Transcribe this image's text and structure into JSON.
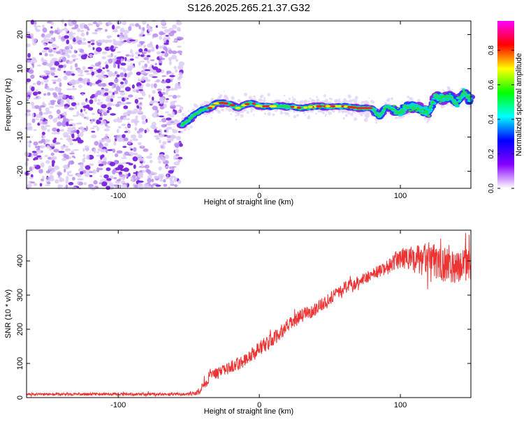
{
  "page_title": "S126.2025.265.21.37.G32",
  "chart_data": [
    {
      "type": "heatmap",
      "title": "S126.2025.265.21.37.G32",
      "xlabel": "Height of straight line (km)",
      "ylabel": "Frequency (Hz)",
      "xlim": [
        -165,
        150
      ],
      "ylim": [
        -25,
        24
      ],
      "xticks": [
        -100,
        0,
        100
      ],
      "yticks": [
        -20,
        -10,
        0,
        10,
        20
      ],
      "grid": false,
      "noise_region_x": [
        -165,
        -55
      ],
      "signal_track": {
        "x": [
          -55,
          -50,
          -45,
          -40,
          -35,
          -30,
          -25,
          -20,
          -15,
          -10,
          -5,
          0,
          10,
          20,
          30,
          40,
          50,
          60,
          70,
          80,
          85,
          90,
          95,
          100,
          105,
          110,
          115,
          120,
          125,
          130,
          135,
          140,
          145,
          150
        ],
        "freq": [
          -6.5,
          -5,
          -3,
          -2,
          -1.5,
          0,
          0,
          -0.5,
          -1.5,
          -0.5,
          0,
          -1,
          -1,
          -1,
          -1.5,
          -1,
          -1,
          -1,
          -1.5,
          -1.5,
          -4,
          -1,
          -2,
          -3,
          -1,
          -1,
          -2,
          -3,
          2,
          1,
          2,
          0,
          3,
          1
        ]
      },
      "colorbar": {
        "label": "Normalized spectral amplitude",
        "ticks": [
          "0.0",
          "0.2",
          "0.4",
          "0.6",
          "0.8"
        ],
        "tick_values": [
          0.0,
          0.2,
          0.4,
          0.6,
          0.8
        ],
        "range": [
          0,
          0.97
        ],
        "colors": [
          "#ff00ff",
          "#ff0000",
          "#ffff00",
          "#00ff00",
          "#00ffff",
          "#0000ff",
          "#8800ff",
          "#ffffff"
        ]
      }
    },
    {
      "type": "line",
      "xlabel": "Height of straight line (km)",
      "ylabel": "SNR (10 * v/v)",
      "xlim": [
        -165,
        150
      ],
      "ylim": [
        0,
        490
      ],
      "xticks": [
        -100,
        0,
        100
      ],
      "yticks": [
        0,
        100,
        200,
        300,
        400
      ],
      "color": "#ee3333",
      "series": [
        {
          "name": "SNR",
          "x": [
            -165,
            -50,
            -45,
            -42,
            -40,
            -38,
            -35,
            -30,
            -20,
            -10,
            0,
            10,
            20,
            30,
            40,
            50,
            60,
            70,
            80,
            90,
            100,
            110,
            120,
            130,
            140,
            150
          ],
          "y": [
            10,
            10,
            13,
            20,
            40,
            30,
            75,
            70,
            90,
            110,
            145,
            170,
            210,
            240,
            260,
            290,
            320,
            340,
            360,
            380,
            410,
            400,
            405,
            390,
            385,
            390
          ],
          "noise": [
            4,
            4,
            8,
            10,
            12,
            15,
            18,
            15,
            18,
            20,
            22,
            22,
            20,
            20,
            20,
            18,
            18,
            18,
            18,
            20,
            30,
            45,
            50,
            50,
            50,
            45
          ]
        }
      ]
    }
  ]
}
